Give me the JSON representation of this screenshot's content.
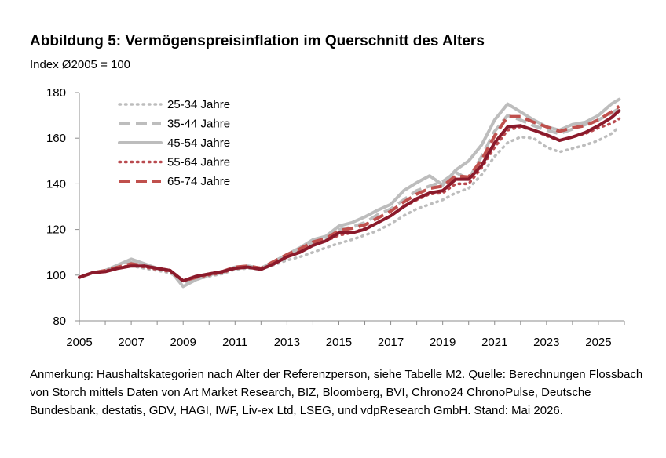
{
  "title": "Abbildung 5: Vermögenspreisinflation im Querschnitt des Alters",
  "subtitle": "Index Ø2005 = 100",
  "note": "Anmerkung: Haushaltskategorien nach Alter der Referenzperson, siehe Tabelle M2. Quelle: Berechnungen Flossbach von Storch mittels Daten von Art Market Research, BIZ, Bloomberg, BVI, Chrono24 ChronoPulse, Deutsche Bundesbank, destatis, GDV, HAGI, IWF, Liv-ex Ltd, LSEG, und vdpResearch GmbH. Stand: Mai 2026.",
  "chart_data": {
    "type": "line",
    "title": "Abbildung 5: Vermögenspreisinflation im Querschnitt des Alters",
    "ylabel": "Index Ø2005 = 100",
    "xlim": [
      2005,
      2026
    ],
    "ylim": [
      80,
      180
    ],
    "x_ticks": [
      "2005",
      "2007",
      "2009",
      "2011",
      "2013",
      "2015",
      "2017",
      "2019",
      "2021",
      "2023",
      "2025"
    ],
    "y_ticks": [
      "80",
      "100",
      "120",
      "140",
      "160",
      "180"
    ],
    "grid": false,
    "legend_position": "top-left",
    "x": [
      2005,
      2005.5,
      2006,
      2006.5,
      2007,
      2007.5,
      2008,
      2008.5,
      2009,
      2009.5,
      2010,
      2010.5,
      2011,
      2011.5,
      2012,
      2012.5,
      2013,
      2013.5,
      2014,
      2014.5,
      2015,
      2015.5,
      2016,
      2016.5,
      2017,
      2017.5,
      2018,
      2018.5,
      2019,
      2019.5,
      2020,
      2020.5,
      2021,
      2021.5,
      2022,
      2022.5,
      2023,
      2023.5,
      2024,
      2024.5,
      2025,
      2025.5,
      2025.8
    ],
    "series": [
      {
        "name": "25-34 Jahre",
        "color": "#bdbdbd",
        "style": "dotted",
        "values": [
          99,
          101,
          102,
          103,
          104,
          103,
          102,
          101,
          97,
          98,
          99.5,
          100.5,
          102.5,
          103,
          102.5,
          104.5,
          106.5,
          108,
          110,
          112,
          114,
          115.5,
          117.5,
          119.5,
          122.5,
          126,
          129,
          131,
          133,
          136,
          138,
          144,
          152,
          158,
          160.5,
          160,
          156,
          154,
          155.5,
          157,
          159,
          162,
          165
        ]
      },
      {
        "name": "35-44 Jahre",
        "color": "#bdbdbd",
        "style": "dashed",
        "values": [
          99,
          101,
          102,
          103.5,
          105.5,
          104,
          103,
          102,
          96,
          98,
          100,
          101,
          103,
          104,
          103,
          105.5,
          108,
          111,
          114,
          116,
          120,
          121,
          123,
          126.5,
          129,
          133,
          137,
          139,
          141,
          145,
          142,
          152,
          163,
          170,
          168,
          165.5,
          163.5,
          162,
          164,
          166,
          168,
          171,
          173
        ]
      },
      {
        "name": "45-54 Jahre",
        "color": "#bdbdbd",
        "style": "solid",
        "values": [
          99,
          101,
          102,
          104.5,
          107,
          105,
          103,
          102,
          95,
          98,
          100,
          101.5,
          103.5,
          104,
          103,
          106,
          109,
          112,
          115.5,
          117,
          121.5,
          123,
          125.5,
          128.5,
          131,
          137,
          140.5,
          143.5,
          139.5,
          146,
          150,
          157,
          168,
          175,
          171.5,
          168,
          165,
          163.5,
          166,
          167,
          170,
          175,
          177
        ]
      },
      {
        "name": "55-64 Jahre",
        "color": "#b94a4f",
        "style": "dotted",
        "values": [
          99,
          101,
          102,
          103,
          104.5,
          103.5,
          102.5,
          101.5,
          97.5,
          99,
          100,
          101,
          103,
          103.5,
          102.5,
          105,
          108,
          110.5,
          113,
          115,
          117.5,
          118.5,
          120.5,
          123,
          126,
          130,
          133,
          135.5,
          136,
          140,
          140,
          147,
          156,
          163.5,
          165,
          163.5,
          161,
          159,
          160.5,
          162,
          164.5,
          166.5,
          168.5
        ]
      },
      {
        "name": "65-74 Jahre",
        "color": "#c0504d",
        "style": "dashed",
        "values": [
          99,
          101,
          102,
          103.5,
          105,
          104,
          103,
          102,
          97.5,
          99,
          100.5,
          101.5,
          103.5,
          104,
          103,
          106,
          109,
          111.5,
          114.5,
          116,
          119.5,
          120.5,
          122,
          125,
          128,
          132,
          135.5,
          138,
          139,
          143.5,
          143,
          150.5,
          161,
          169.5,
          169.5,
          167,
          165,
          163,
          164.5,
          165.5,
          168,
          171.5,
          174
        ]
      },
      {
        "name": "",
        "color": "#8b1a2b",
        "style": "solid",
        "values": [
          99,
          101,
          101.5,
          103,
          104,
          104,
          103,
          102,
          97.5,
          99.5,
          100.5,
          101.5,
          103,
          103.5,
          102.5,
          105,
          108,
          110,
          113,
          115,
          118.5,
          118.5,
          120,
          123,
          126,
          130,
          133.5,
          136,
          137,
          142,
          142,
          148,
          158,
          165,
          165.5,
          163.5,
          161.5,
          159,
          160.5,
          162.5,
          165.5,
          169,
          172
        ]
      }
    ]
  }
}
